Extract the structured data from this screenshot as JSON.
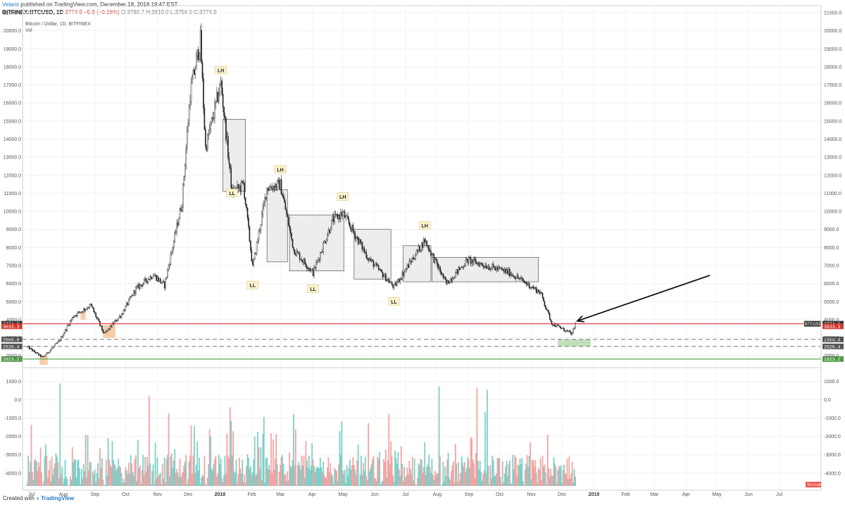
{
  "header": {
    "author": "Velaris",
    "published_text": "published on TradingView.com, December 18, 2018 19:47 EST",
    "symbol_line": "BITFINEX:BTCUSD, 1D",
    "last": "3774.9",
    "change": "−5.9 (−0.16%)",
    "ohlc": "O:3780.7 H:3810.0 L:3756.0 C:3774.9"
  },
  "pane": {
    "title": "Bitcoin / Dollar, 1D, BITFINEX",
    "vol_label": "Vol"
  },
  "footer": {
    "created_with": "Created with",
    "brand": "TradingView"
  },
  "colors": {
    "red_line": "#e0302d",
    "green_line": "#5aa84f",
    "dash_line": "#777777",
    "up_vol": "#7ecfc7",
    "down_vol": "#f3a3a3",
    "candle": "#222222",
    "box_fill": "#e6e6e6",
    "orange_zone": "#f6c8a0",
    "green_zone": "#b9ddb3",
    "annotation_bg": "#fdf3cf",
    "arrow": "#111111"
  },
  "chart_data": [
    {
      "type": "candlestick",
      "symbol": "BTCUSD",
      "timeframe": "1D",
      "title": "Bitcoin / Dollar, 1D, BITFINEX",
      "ylim": [
        1500,
        21000
      ],
      "y_ticks": [
        2000,
        3000,
        4000,
        5000,
        6000,
        7000,
        8000,
        9000,
        10000,
        11000,
        12000,
        13000,
        14000,
        15000,
        16000,
        17000,
        18000,
        19000,
        20000,
        21000
      ],
      "y_tick_labels": [
        "2000.0",
        "3000.0",
        "4000.0",
        "5000.0",
        "6000.0",
        "7000.0",
        "8000.0",
        "9000.0",
        "10000.0",
        "11000.0",
        "12000.0",
        "13000.0",
        "14000.0",
        "15000.0",
        "16000.0",
        "17000.0",
        "18000.0",
        "19000.0",
        "20000.0",
        "21000.0"
      ],
      "x_labels": [
        "Jul",
        "Aug",
        "Sep",
        "Oct",
        "Nov",
        "Dec",
        "2018",
        "Feb",
        "Mar",
        "Apr",
        "May",
        "Jun",
        "Jul",
        "Aug",
        "Sep",
        "Oct",
        "Nov",
        "Dec",
        "2019",
        "Feb",
        "Mar",
        "Apr",
        "May",
        "Jun",
        "Jul"
      ],
      "price_path": [
        [
          "2017-07-01",
          2500
        ],
        [
          "2017-07-16",
          1900
        ],
        [
          "2017-08-01",
          2800
        ],
        [
          "2017-08-15",
          4200
        ],
        [
          "2017-09-01",
          4800
        ],
        [
          "2017-09-14",
          3200
        ],
        [
          "2017-10-01",
          4300
        ],
        [
          "2017-10-15",
          5700
        ],
        [
          "2017-11-01",
          6500
        ],
        [
          "2017-11-12",
          5900
        ],
        [
          "2017-11-29",
          10500
        ],
        [
          "2017-12-07",
          16500
        ],
        [
          "2017-12-17",
          19500
        ],
        [
          "2017-12-22",
          13500
        ],
        [
          "2018-01-06",
          17100
        ],
        [
          "2018-01-17",
          11000
        ],
        [
          "2018-01-28",
          11500
        ],
        [
          "2018-02-06",
          6900
        ],
        [
          "2018-02-20",
          11300
        ],
        [
          "2018-03-05",
          11500
        ],
        [
          "2018-03-18",
          7900
        ],
        [
          "2018-04-06",
          6600
        ],
        [
          "2018-04-25",
          9500
        ],
        [
          "2018-05-05",
          9900
        ],
        [
          "2018-05-30",
          7400
        ],
        [
          "2018-06-24",
          5800
        ],
        [
          "2018-07-24",
          8400
        ],
        [
          "2018-08-14",
          6000
        ],
        [
          "2018-09-04",
          7300
        ],
        [
          "2018-10-15",
          6600
        ],
        [
          "2018-11-14",
          5500
        ],
        [
          "2018-11-25",
          3800
        ],
        [
          "2018-12-15",
          3200
        ],
        [
          "2018-12-18",
          3774.9
        ]
      ],
      "horizontal_lines": [
        {
          "value": 3774.9,
          "label": "3774.9",
          "tag": "BTCUSD",
          "color": "red"
        },
        {
          "value": 3633.3,
          "label": "3633.3",
          "color": "red"
        },
        {
          "value": 2908.0,
          "label": "2908.0",
          "style": "dashed"
        },
        {
          "value": 2520.4,
          "label": "2520.4",
          "style": "dashed"
        },
        {
          "value": 1823.2,
          "label": "1823.2",
          "color": "green"
        }
      ],
      "annotations": [
        {
          "text": "LH",
          "date": "2018-01-06",
          "price": 17800
        },
        {
          "text": "LL",
          "date": "2018-01-17",
          "price": 11000
        },
        {
          "text": "LH",
          "date": "2018-03-05",
          "price": 12300
        },
        {
          "text": "LL",
          "date": "2018-02-06",
          "price": 5900
        },
        {
          "text": "LH",
          "date": "2018-05-05",
          "price": 10800
        },
        {
          "text": "LL",
          "date": "2018-04-06",
          "price": 5700
        },
        {
          "text": "LH",
          "date": "2018-07-24",
          "price": 9200
        },
        {
          "text": "LL",
          "date": "2018-06-24",
          "price": 5000
        }
      ],
      "range_boxes": [
        {
          "from": "2018-01-08",
          "to": "2018-01-30",
          "low": 11100,
          "high": 15100
        },
        {
          "from": "2018-02-20",
          "to": "2018-03-12",
          "low": 7200,
          "high": 11200
        },
        {
          "from": "2018-03-14",
          "to": "2018-05-06",
          "low": 6700,
          "high": 9800
        },
        {
          "from": "2018-05-16",
          "to": "2018-06-21",
          "low": 6250,
          "high": 9000
        },
        {
          "from": "2018-07-03",
          "to": "2018-07-30",
          "low": 6100,
          "high": 8100
        },
        {
          "from": "2018-07-31",
          "to": "2018-11-12",
          "low": 6100,
          "high": 7450
        }
      ],
      "zones": [
        {
          "from": "2017-07-13",
          "to": "2017-07-21",
          "low": 1500,
          "high": 2000,
          "color": "orange"
        },
        {
          "from": "2017-08-22",
          "to": "2017-08-27",
          "low": 4000,
          "high": 4400,
          "color": "orange"
        },
        {
          "from": "2017-09-13",
          "to": "2017-09-25",
          "low": 3000,
          "high": 3700,
          "color": "orange"
        },
        {
          "from": "2018-12-01",
          "to": "2019-01-02",
          "low": 2520.4,
          "high": 2908.0,
          "color": "green"
        }
      ]
    },
    {
      "type": "bar",
      "title": "Vol",
      "ylim": [
        -4700,
        1600
      ],
      "y_ticks": [
        1000,
        0,
        -1000,
        -2000,
        -3000,
        -4000
      ],
      "y_tick_labels": [
        "1000.0",
        "0.0",
        "-1000.0",
        "-2000.0",
        "-3000.0",
        "-4000.0"
      ],
      "series": [
        {
          "name": "Volume"
        }
      ]
    }
  ]
}
